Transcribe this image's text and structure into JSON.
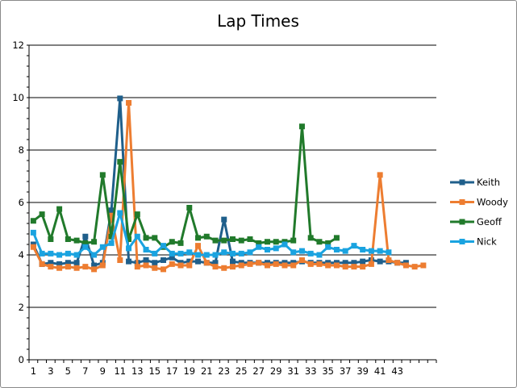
{
  "chart_data": {
    "type": "line",
    "title": "Lap Times",
    "xlabel": "",
    "ylabel": "",
    "ylim": [
      0,
      12
    ],
    "yticks": [
      0,
      2,
      4,
      6,
      8,
      10,
      12
    ],
    "x_tick_labels": [
      "1",
      "3",
      "5",
      "7",
      "9",
      "11",
      "13",
      "15",
      "17",
      "19",
      "21",
      "23",
      "25",
      "27",
      "29",
      "31",
      "33",
      "35",
      "37",
      "39",
      "41",
      "43"
    ],
    "x_count": 47,
    "grid": "horizontal",
    "legend": "right",
    "series": [
      {
        "name": "Keith",
        "color": "#1f5f8b",
        "values": [
          4.4,
          3.65,
          3.7,
          3.65,
          3.7,
          3.7,
          4.7,
          3.6,
          3.7,
          5.7,
          9.97,
          3.75,
          3.7,
          3.8,
          3.7,
          3.8,
          3.9,
          3.7,
          3.75,
          3.75,
          3.7,
          3.7,
          5.35,
          3.75,
          3.7,
          3.7,
          3.7,
          3.7,
          3.7,
          3.7,
          3.7,
          3.75,
          3.7,
          3.7,
          3.7,
          3.7,
          3.7,
          3.7,
          3.75,
          3.8,
          3.75,
          3.75,
          3.7,
          3.7
        ]
      },
      {
        "name": "Woody",
        "color": "#ed7d31",
        "values": [
          4.3,
          3.65,
          3.55,
          3.5,
          3.55,
          3.5,
          3.55,
          3.45,
          3.6,
          5.5,
          3.8,
          9.8,
          3.55,
          3.6,
          3.5,
          3.45,
          3.65,
          3.6,
          3.6,
          4.35,
          3.7,
          3.55,
          3.5,
          3.55,
          3.6,
          3.65,
          3.7,
          3.6,
          3.65,
          3.6,
          3.6,
          3.8,
          3.65,
          3.65,
          3.6,
          3.6,
          3.55,
          3.55,
          3.55,
          3.65,
          7.05,
          3.8,
          3.7,
          3.6,
          3.55,
          3.6
        ]
      },
      {
        "name": "Geoff",
        "color": "#217a2b",
        "values": [
          5.3,
          5.55,
          4.6,
          5.75,
          4.6,
          4.55,
          4.45,
          4.5,
          7.05,
          4.7,
          7.55,
          4.6,
          5.55,
          4.65,
          4.65,
          4.3,
          4.5,
          4.45,
          5.8,
          4.65,
          4.7,
          4.55,
          4.55,
          4.6,
          4.55,
          4.6,
          4.45,
          4.5,
          4.5,
          4.5,
          4.55,
          8.9,
          4.65,
          4.5,
          4.45,
          4.65
        ]
      },
      {
        "name": "Nick",
        "color": "#1aa3e0",
        "values": [
          4.85,
          4.05,
          4.05,
          4.0,
          4.05,
          4.0,
          4.3,
          4.0,
          4.3,
          4.45,
          5.6,
          4.25,
          4.7,
          4.2,
          4.05,
          4.35,
          4.05,
          4.05,
          4.1,
          4.0,
          4.0,
          4.0,
          4.1,
          4.05,
          4.05,
          4.1,
          4.3,
          4.2,
          4.25,
          4.4,
          4.1,
          4.15,
          4.05,
          4.0,
          4.3,
          4.2,
          4.15,
          4.35,
          4.2,
          4.15,
          4.15,
          4.1
        ]
      }
    ]
  }
}
